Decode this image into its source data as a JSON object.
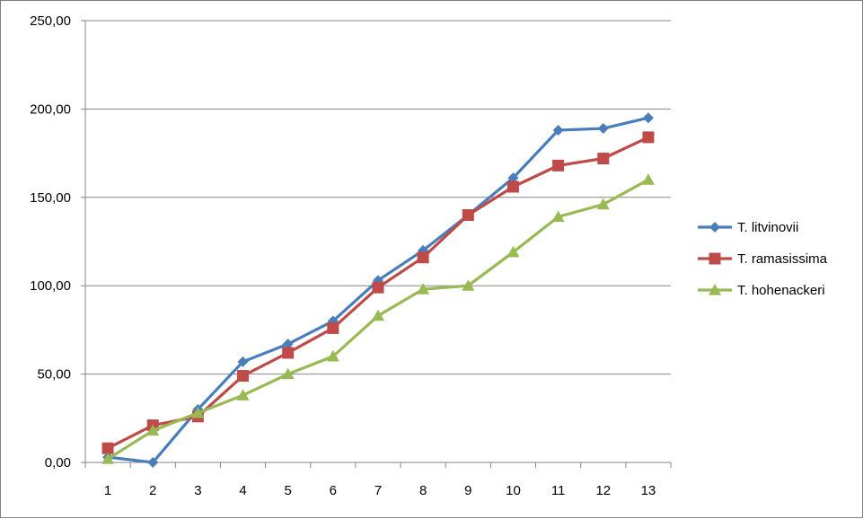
{
  "chart_data": {
    "type": "line",
    "title": "",
    "xlabel": "",
    "ylabel": "",
    "categories": [
      "1",
      "2",
      "3",
      "4",
      "5",
      "6",
      "7",
      "8",
      "9",
      "10",
      "11",
      "12",
      "13"
    ],
    "ylim": [
      0,
      250
    ],
    "y_ticks": [
      "0,00",
      "50,00",
      "100,00",
      "150,00",
      "200,00",
      "250,00"
    ],
    "y_tick_values": [
      0,
      50,
      100,
      150,
      200,
      250
    ],
    "grid": true,
    "legend_position": "right",
    "series": [
      {
        "name": "T. litvinovii",
        "color": "#4A7EBB",
        "marker": "diamond",
        "values": [
          3,
          0,
          30,
          57,
          67,
          80,
          103,
          120,
          140,
          161,
          188,
          189,
          195
        ]
      },
      {
        "name": "T. ramasissima",
        "color": "#BE4B48",
        "marker": "square",
        "values": [
          8,
          21,
          26,
          49,
          62,
          76,
          99,
          116,
          140,
          156,
          168,
          172,
          184
        ]
      },
      {
        "name": "T. hohenackeri",
        "color": "#98B954",
        "marker": "triangle",
        "values": [
          2,
          18,
          28,
          38,
          50,
          60,
          83,
          98,
          100,
          119,
          139,
          146,
          160
        ]
      }
    ]
  }
}
